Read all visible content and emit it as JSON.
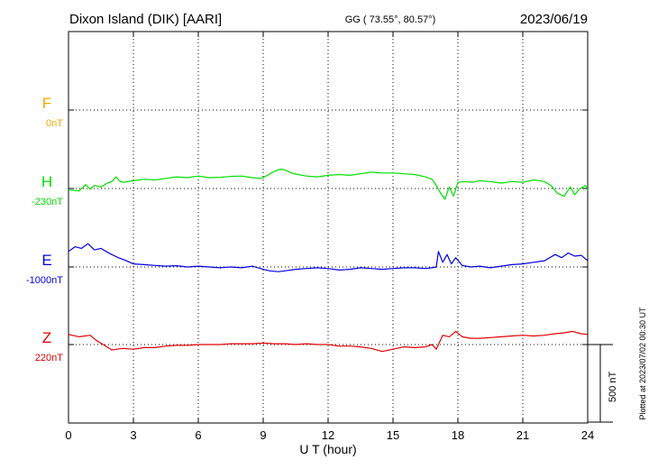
{
  "header": {
    "station": "Dixon Island (DIK)  [AARI]",
    "coords": "GG ( 73.55°,  80.57°)",
    "date": "2023/06/19"
  },
  "footer": {
    "plotted": "Plotted at 2023/07/02 00:30 UT"
  },
  "scale_bar": {
    "label": "500 nT",
    "value_nT": 500
  },
  "colors": {
    "F": "#f5a800",
    "H": "#00e000",
    "E": "#0000dd",
    "Z": "#e00000",
    "axis": "#000000"
  },
  "chart_data": {
    "type": "line",
    "xlabel": "U T (hour)",
    "xlim": [
      0,
      24
    ],
    "xticks": [
      "0",
      "3",
      "6",
      "9",
      "12",
      "15",
      "18",
      "21",
      "24"
    ],
    "channels": [
      {
        "name": "F",
        "baseline": "0nT",
        "level": 0
      },
      {
        "name": "H",
        "baseline": "-230nT",
        "level": 1
      },
      {
        "name": "E",
        "baseline": "-1000nT",
        "level": 2
      },
      {
        "name": "Z",
        "baseline": "220nT",
        "level": 3
      }
    ],
    "series": [
      {
        "name": "H",
        "unit": "nT relative to baseline",
        "x": [
          0,
          0.5,
          0.8,
          1.0,
          1.2,
          1.5,
          1.8,
          2.0,
          2.2,
          2.35,
          2.5,
          3.0,
          3.5,
          4.0,
          4.5,
          5.0,
          5.5,
          6.0,
          6.5,
          7.0,
          7.5,
          8.0,
          8.5,
          8.9,
          9.2,
          9.5,
          9.8,
          10.0,
          10.3,
          10.6,
          11.0,
          11.5,
          12.0,
          12.5,
          13.0,
          13.5,
          14.0,
          14.5,
          15.0,
          15.5,
          16.0,
          16.5,
          16.8,
          17.0,
          17.2,
          17.4,
          17.6,
          17.8,
          18.0,
          18.3,
          18.7,
          19.0,
          19.5,
          20.0,
          20.5,
          21.0,
          21.5,
          22.0,
          22.3,
          22.6,
          22.9,
          23.2,
          23.4,
          23.6,
          23.9,
          24.0
        ],
        "y": [
          -10,
          -15,
          25,
          -5,
          20,
          10,
          35,
          45,
          75,
          50,
          40,
          50,
          60,
          55,
          65,
          75,
          70,
          80,
          70,
          72,
          78,
          80,
          70,
          65,
          85,
          110,
          125,
          120,
          100,
          90,
          80,
          75,
          85,
          90,
          85,
          95,
          105,
          100,
          100,
          95,
          90,
          75,
          60,
          20,
          -30,
          -70,
          10,
          -50,
          40,
          45,
          40,
          50,
          45,
          35,
          45,
          40,
          55,
          45,
          20,
          -30,
          -50,
          10,
          -40,
          -5,
          20,
          -15
        ]
      },
      {
        "name": "E",
        "unit": "nT relative to baseline",
        "x": [
          0,
          0.3,
          0.6,
          0.9,
          1.2,
          1.5,
          1.8,
          2.0,
          2.3,
          2.6,
          3.0,
          3.5,
          4.0,
          4.5,
          5.0,
          5.5,
          6.0,
          6.5,
          7.0,
          7.5,
          8.0,
          8.5,
          9.0,
          9.3,
          9.7,
          10.0,
          10.5,
          11.0,
          11.5,
          12.0,
          12.5,
          13.0,
          13.5,
          14.0,
          14.5,
          15.0,
          15.5,
          16.0,
          16.5,
          16.8,
          17.0,
          17.1,
          17.3,
          17.5,
          17.7,
          17.9,
          18.2,
          18.6,
          19.0,
          19.5,
          20.0,
          20.5,
          21.0,
          21.5,
          22.0,
          22.5,
          22.8,
          23.1,
          23.4,
          23.7,
          24.0
        ],
        "y": [
          100,
          130,
          120,
          150,
          110,
          120,
          95,
          80,
          60,
          45,
          20,
          15,
          10,
          5,
          8,
          0,
          5,
          0,
          -5,
          0,
          -5,
          5,
          -15,
          -25,
          -30,
          -25,
          -15,
          -10,
          -5,
          -10,
          -20,
          -15,
          -5,
          -10,
          -15,
          -10,
          -5,
          -5,
          -10,
          -5,
          0,
          100,
          30,
          80,
          20,
          60,
          10,
          0,
          5,
          -5,
          5,
          15,
          20,
          30,
          40,
          80,
          60,
          90,
          70,
          75,
          40
        ]
      },
      {
        "name": "Z",
        "unit": "nT relative to baseline",
        "x": [
          0,
          0.5,
          1.0,
          1.3,
          1.6,
          2.0,
          2.5,
          3.0,
          3.5,
          4.0,
          4.5,
          5.0,
          5.5,
          6.0,
          6.5,
          7.0,
          7.5,
          8.0,
          8.5,
          9.0,
          9.5,
          10.0,
          10.5,
          11.0,
          11.5,
          12.0,
          12.5,
          13.0,
          13.5,
          14.0,
          14.5,
          15.0,
          15.5,
          16.0,
          16.5,
          16.8,
          17.0,
          17.3,
          17.6,
          17.9,
          18.2,
          18.6,
          19.0,
          19.5,
          20.0,
          20.5,
          21.0,
          21.5,
          22.0,
          22.5,
          22.9,
          23.3,
          23.7,
          24.0
        ],
        "y": [
          65,
          50,
          60,
          25,
          0,
          -35,
          -25,
          -30,
          -20,
          -20,
          -10,
          -5,
          -5,
          0,
          0,
          0,
          5,
          5,
          5,
          10,
          5,
          5,
          0,
          5,
          0,
          0,
          -10,
          -10,
          -15,
          -25,
          -45,
          -30,
          -15,
          -20,
          -15,
          0,
          -30,
          60,
          50,
          85,
          50,
          40,
          40,
          45,
          50,
          55,
          60,
          55,
          60,
          70,
          75,
          85,
          70,
          65
        ]
      }
    ]
  }
}
